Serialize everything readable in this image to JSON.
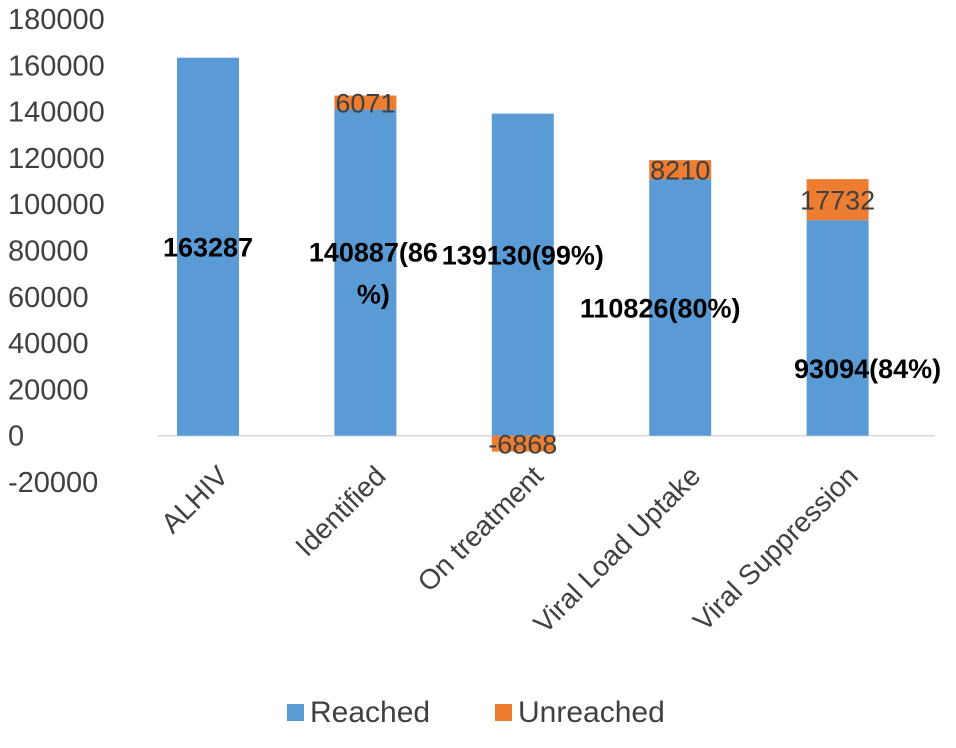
{
  "chart_data": {
    "type": "bar",
    "stacked": true,
    "categories": [
      "ALHIV",
      "Identified",
      "On treatment",
      "Viral Load Uptake",
      "Viral Suppression"
    ],
    "series": [
      {
        "name": "Reached",
        "color": "#5B9BD5",
        "values": [
          163287,
          140887,
          139130,
          110826,
          93094
        ],
        "labels": [
          "163287",
          "140887(86\n%)",
          "139130(99%)",
          "110826(80%)",
          "93094(84%)"
        ]
      },
      {
        "name": "Unreached",
        "color": "#ED7D31",
        "values": [
          0,
          6071,
          -6868,
          8210,
          17732
        ],
        "labels": [
          "",
          "6071",
          "-6868",
          "8210",
          "17732"
        ]
      }
    ],
    "yticks": [
      "180000",
      "160000",
      "140000",
      "120000",
      "100000",
      "80000",
      "60000",
      "40000",
      "20000",
      "0",
      "-20000"
    ],
    "ylim": [
      -20000,
      180000
    ],
    "grid": false,
    "legend_position": "bottom"
  }
}
